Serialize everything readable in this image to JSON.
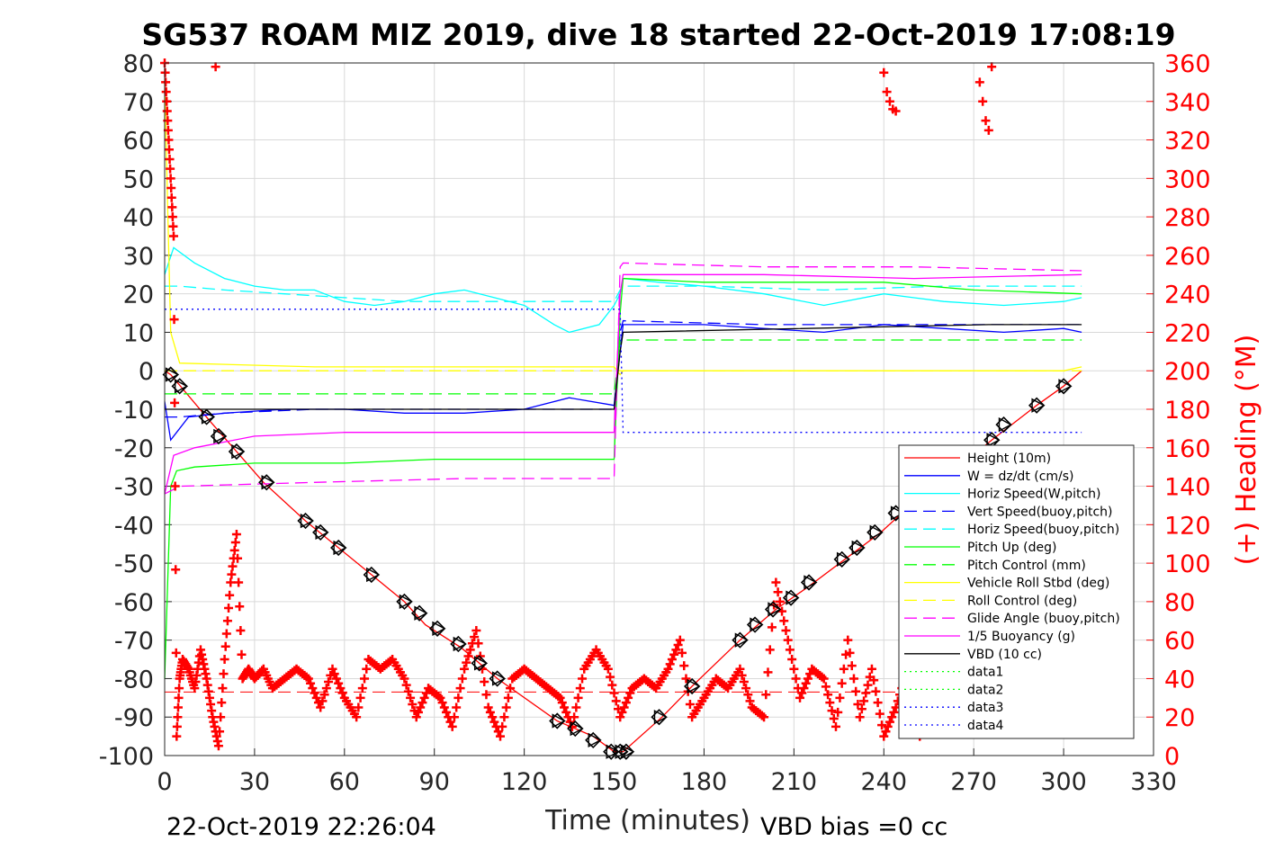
{
  "chart_data": {
    "type": "line",
    "title": "SG537 ROAM MIZ 2019, dive 18 started 22-Oct-2019 17:08:19",
    "xlabel": "Time (minutes)",
    "ylabel": "",
    "y2label": "(+) Heading (°M)",
    "xlim": [
      0,
      330
    ],
    "ylim": [
      -100,
      80
    ],
    "y2lim": [
      0,
      360
    ],
    "xticks": [
      0,
      30,
      60,
      90,
      120,
      150,
      180,
      210,
      240,
      270,
      300,
      330
    ],
    "yticks": [
      -100,
      -90,
      -80,
      -70,
      -60,
      -50,
      -40,
      -30,
      -20,
      -10,
      0,
      10,
      20,
      30,
      40,
      50,
      60,
      70,
      80
    ],
    "y2ticks": [
      0,
      20,
      40,
      60,
      80,
      100,
      120,
      140,
      160,
      180,
      200,
      220,
      240,
      260,
      280,
      300,
      320,
      340,
      360
    ],
    "grid": true,
    "legend_position": "lower-right",
    "footer_left": "22-Oct-2019 22:26:04",
    "footer_right": "VBD bias =0 cc",
    "series": [
      {
        "name": "Height (10m)",
        "color": "#ff0000",
        "style": "solid",
        "x": [
          0,
          2,
          15,
          33,
          47,
          58,
          69,
          80,
          87,
          99,
          111,
          131,
          143,
          150,
          153,
          166,
          176,
          192,
          204,
          215,
          227,
          239,
          246,
          276,
          291,
          300,
          306
        ],
        "y": [
          0,
          -1,
          -13,
          -29,
          -39,
          -46,
          -53,
          -60,
          -66,
          -72,
          -80,
          -91,
          -95,
          -99,
          -99,
          -90,
          -82,
          -70,
          -62,
          -56,
          -49,
          -42,
          -37,
          -18,
          -9,
          -4,
          0
        ]
      },
      {
        "name": "W = dz/dt (cm/s)",
        "color": "#0000ff",
        "style": "solid",
        "x": [
          0,
          2,
          4,
          8,
          20,
          40,
          60,
          80,
          100,
          120,
          135,
          150,
          152,
          153,
          165,
          180,
          200,
          220,
          240,
          260,
          280,
          300,
          306
        ],
        "y": [
          -8,
          -18,
          -16,
          -12,
          -11,
          -10,
          -10,
          -11,
          -11,
          -10,
          -7,
          -9,
          5,
          12,
          12,
          12,
          11,
          10,
          12,
          11,
          10,
          11,
          10
        ]
      },
      {
        "name": "Horiz Speed(W,pitch)",
        "color": "#00ffff",
        "style": "solid",
        "x": [
          0,
          3,
          10,
          20,
          30,
          40,
          50,
          60,
          70,
          80,
          90,
          100,
          110,
          120,
          130,
          135,
          145,
          150,
          152,
          153,
          165,
          180,
          200,
          220,
          240,
          260,
          280,
          300,
          306
        ],
        "y": [
          25,
          32,
          28,
          24,
          22,
          21,
          21,
          18,
          17,
          18,
          20,
          21,
          19,
          17,
          12,
          10,
          12,
          17,
          20,
          24,
          23,
          22,
          20,
          17,
          20,
          18,
          17,
          18,
          19
        ]
      },
      {
        "name": "Vert Speed(buoy,pitch)",
        "color": "#0000ff",
        "style": "dashed",
        "x": [
          0,
          5,
          20,
          50,
          100,
          150,
          152,
          153,
          200,
          250,
          306
        ],
        "y": [
          -12,
          -12,
          -11,
          -10,
          -10,
          -10,
          10,
          13,
          12,
          12,
          12
        ]
      },
      {
        "name": "Horiz Speed(buoy,pitch)",
        "color": "#00ffff",
        "style": "dashed",
        "x": [
          0,
          5,
          20,
          40,
          60,
          80,
          100,
          120,
          150,
          152,
          153,
          180,
          220,
          260,
          306
        ],
        "y": [
          22,
          22,
          21,
          20,
          19,
          18,
          18,
          18,
          18,
          21,
          22,
          22,
          21,
          22,
          22
        ]
      },
      {
        "name": "Pitch Up (deg)",
        "color": "#00ff00",
        "style": "solid",
        "x": [
          0,
          2,
          4,
          10,
          30,
          60,
          90,
          120,
          150,
          152,
          153,
          180,
          210,
          240,
          270,
          306
        ],
        "y": [
          -80,
          -30,
          -26,
          -25,
          -24,
          -24,
          -23,
          -23,
          -23,
          15,
          24,
          23,
          23,
          23,
          21,
          20
        ]
      },
      {
        "name": "Pitch Control (mm)",
        "color": "#00ff00",
        "style": "dashed",
        "x": [
          0,
          5,
          150,
          152,
          306
        ],
        "y": [
          -6,
          -6,
          -6,
          8,
          8
        ]
      },
      {
        "name": "Vehicle Roll Stbd (deg)",
        "color": "#ffff00",
        "style": "solid",
        "x": [
          0,
          2,
          5,
          50,
          100,
          150,
          152,
          153,
          200,
          250,
          300,
          306
        ],
        "y": [
          75,
          10,
          2,
          1,
          1,
          1,
          -1,
          0,
          0,
          0,
          0,
          1
        ]
      },
      {
        "name": "Roll Control (deg)",
        "color": "#ffff00",
        "style": "dashed",
        "x": [
          0,
          306
        ],
        "y": [
          0,
          0
        ]
      },
      {
        "name": "Glide Angle (buoy,pitch)",
        "color": "#ff00ff",
        "style": "dashed",
        "x": [
          0,
          5,
          50,
          100,
          150,
          152,
          153,
          200,
          250,
          306
        ],
        "y": [
          -32,
          -30,
          -29,
          -28,
          -28,
          27,
          28,
          27,
          27,
          26
        ]
      },
      {
        "name": "1/5 Buoyancy (g)",
        "color": "#ff00ff",
        "style": "solid",
        "x": [
          0,
          3,
          10,
          30,
          60,
          100,
          150,
          152,
          153,
          200,
          250,
          306
        ],
        "y": [
          -32,
          -22,
          -20,
          -17,
          -16,
          -16,
          -16,
          20,
          25,
          25,
          24,
          25
        ]
      },
      {
        "name": "VBD (10 cc)",
        "color": "#000000",
        "style": "solid",
        "x": [
          0,
          3,
          150,
          152,
          153,
          275,
          306
        ],
        "y": [
          -10,
          -10,
          -10,
          5,
          10,
          12,
          12
        ]
      },
      {
        "name": "data1",
        "color": "#00ff00",
        "style": "dotted",
        "x": [],
        "y": []
      },
      {
        "name": "data2",
        "color": "#00ff00",
        "style": "dotted",
        "x": [],
        "y": []
      },
      {
        "name": "data3",
        "color": "#0000ff",
        "style": "dotted",
        "x": [
          0,
          152,
          153,
          306
        ],
        "y": [
          16,
          16,
          -16,
          -16
        ]
      },
      {
        "name": "data4",
        "color": "#0000ff",
        "style": "dotted",
        "x": [],
        "y": []
      }
    ],
    "heading": {
      "axis": "right",
      "color": "#ff0000",
      "marker": "plus",
      "x": [
        0,
        1,
        2,
        3,
        4,
        5,
        6,
        8,
        10,
        12,
        14,
        16,
        18,
        20,
        22,
        24,
        26,
        28,
        30,
        33,
        36,
        40,
        44,
        48,
        52,
        56,
        60,
        64,
        68,
        72,
        76,
        80,
        84,
        88,
        92,
        96,
        100,
        104,
        108,
        112,
        116,
        120,
        124,
        128,
        132,
        136,
        140,
        144,
        148,
        152,
        156,
        160,
        164,
        168,
        172,
        176,
        180,
        184,
        188,
        192,
        196,
        200,
        204,
        208,
        212,
        216,
        220,
        224,
        228,
        232,
        236,
        240,
        244,
        248,
        252,
        256,
        260,
        264,
        268,
        272,
        276,
        280,
        284,
        288,
        292,
        296,
        300,
        304
      ],
      "y": [
        360,
        330,
        300,
        270,
        10,
        40,
        50,
        45,
        35,
        55,
        40,
        20,
        5,
        50,
        90,
        115,
        40,
        45,
        40,
        45,
        35,
        40,
        45,
        40,
        25,
        45,
        30,
        20,
        50,
        45,
        50,
        40,
        20,
        35,
        30,
        15,
        45,
        65,
        25,
        10,
        40,
        45,
        40,
        35,
        30,
        15,
        45,
        55,
        45,
        20,
        35,
        40,
        35,
        45,
        60,
        20,
        30,
        40,
        35,
        45,
        25,
        20,
        90,
        60,
        30,
        45,
        40,
        15,
        60,
        20,
        45,
        10,
        25,
        45,
        10,
        20,
        35,
        40,
        25,
        50,
        40,
        30,
        20,
        55,
        40,
        30,
        45,
        50
      ]
    },
    "heading_upper": {
      "x": [
        17,
        240,
        241,
        242,
        243,
        244,
        272,
        273,
        274,
        275,
        276
      ],
      "y": [
        358,
        355,
        345,
        340,
        336,
        335,
        350,
        340,
        330,
        325,
        358
      ]
    },
    "heading_ref_y": 33,
    "markers": {
      "type": "diamond-triangle",
      "x": [
        2,
        5,
        14,
        18,
        24,
        34,
        47,
        52,
        58,
        69,
        80,
        85,
        91,
        98,
        105,
        111,
        131,
        137,
        143,
        149,
        152,
        154,
        165,
        176,
        192,
        197,
        203,
        209,
        215,
        226,
        231,
        237,
        244,
        276,
        280,
        291,
        300
      ],
      "y": [
        -1,
        -4,
        -12,
        -17,
        -21,
        -29,
        -39,
        -42,
        -46,
        -53,
        -60,
        -63,
        -67,
        -71,
        -76,
        -80,
        -91,
        -93,
        -96,
        -99,
        -99,
        -99,
        -90,
        -82,
        -70,
        -66,
        -62,
        -59,
        -55,
        -49,
        -46,
        -42,
        -37,
        -18,
        -14,
        -9,
        -4
      ]
    }
  }
}
